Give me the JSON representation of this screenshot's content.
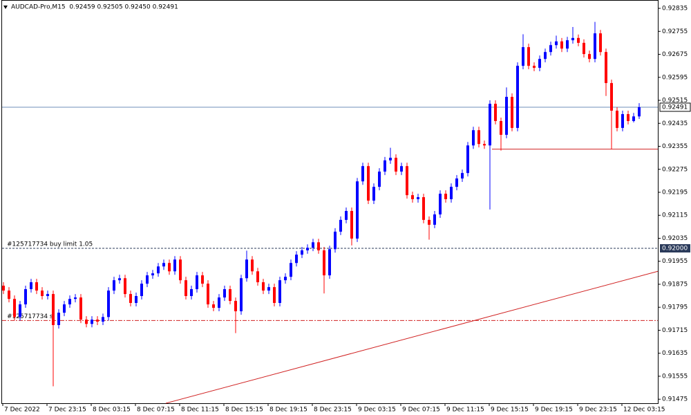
{
  "chart_data": {
    "type": "candlestick",
    "title": "AUDCAD-Pro,M15  0.92459 0.92505 0.92450 0.92491",
    "up_color": "#0000ff",
    "down_color": "#ff0000",
    "ylim": [
      0.91461,
      0.92864
    ],
    "yticks": [
      0.92835,
      0.92755,
      0.92675,
      0.92595,
      0.92515,
      0.92435,
      0.92355,
      0.92275,
      0.92195,
      0.92115,
      0.92035,
      0.91955,
      0.91875,
      0.91795,
      0.91715,
      0.91635,
      0.91555,
      0.91475
    ],
    "time_labels": [
      "7 Dec 2022",
      "7 Dec 23:15",
      "8 Dec 03:15",
      "8 Dec 07:15",
      "8 Dec 11:15",
      "8 Dec 15:15",
      "8 Dec 19:15",
      "8 Dec 23:15",
      "9 Dec 03:15",
      "9 Dec 07:15",
      "9 Dec 11:15",
      "9 Dec 15:15",
      "9 Dec 19:15",
      "9 Dec 23:15",
      "12 Dec 03:15"
    ],
    "bid_line": 0.92491,
    "order_line": {
      "text": "#125717734 buy limit 1.05",
      "price": {
        "value": 0.92,
        "label": "0.92000"
      }
    },
    "sl_line": {
      "text": "#125717734 sl",
      "price": 0.91749
    },
    "support_line": 0.92345,
    "trend_line": [
      0.91461,
      0.9192
    ],
    "ohlc": [
      [
        0.9187,
        0.91882,
        0.91841,
        0.91853
      ],
      [
        0.91853,
        0.91865,
        0.91812,
        0.91824
      ],
      [
        0.91824,
        0.91836,
        0.91749,
        0.91761
      ],
      [
        0.91761,
        0.91817,
        0.91749,
        0.91805
      ],
      [
        0.91805,
        0.9187,
        0.91793,
        0.91858
      ],
      [
        0.91858,
        0.91894,
        0.91846,
        0.91882
      ],
      [
        0.91882,
        0.91894,
        0.91841,
        0.91853
      ],
      [
        0.91853,
        0.91865,
        0.91822,
        0.91834
      ],
      [
        0.91834,
        0.91853,
        0.91822,
        0.91841
      ],
      [
        0.91841,
        0.91853,
        0.9152,
        0.91733
      ],
      [
        0.91733,
        0.91788,
        0.91721,
        0.91776
      ],
      [
        0.91776,
        0.91817,
        0.91764,
        0.91805
      ],
      [
        0.91805,
        0.91836,
        0.91793,
        0.91824
      ],
      [
        0.91824,
        0.91841,
        0.91812,
        0.91829
      ],
      [
        0.91829,
        0.91841,
        0.9174,
        0.91752
      ],
      [
        0.91752,
        0.91764,
        0.91725,
        0.91737
      ],
      [
        0.91737,
        0.91764,
        0.91725,
        0.91752
      ],
      [
        0.91752,
        0.91764,
        0.91733,
        0.91745
      ],
      [
        0.91745,
        0.91773,
        0.91733,
        0.91761
      ],
      [
        0.91761,
        0.91865,
        0.91749,
        0.91853
      ],
      [
        0.91853,
        0.91901,
        0.91841,
        0.91889
      ],
      [
        0.91889,
        0.91908,
        0.91877,
        0.91896
      ],
      [
        0.91896,
        0.91908,
        0.91829,
        0.91841
      ],
      [
        0.91841,
        0.91853,
        0.91798,
        0.9181
      ],
      [
        0.9181,
        0.91846,
        0.91798,
        0.91834
      ],
      [
        0.91834,
        0.91889,
        0.91822,
        0.91877
      ],
      [
        0.91877,
        0.91918,
        0.91865,
        0.91906
      ],
      [
        0.91906,
        0.91925,
        0.91894,
        0.91913
      ],
      [
        0.91913,
        0.91949,
        0.91901,
        0.91937
      ],
      [
        0.91937,
        0.91961,
        0.91925,
        0.91949
      ],
      [
        0.91949,
        0.91961,
        0.91908,
        0.9192
      ],
      [
        0.9192,
        0.91973,
        0.91908,
        0.91961
      ],
      [
        0.91961,
        0.91973,
        0.91877,
        0.91889
      ],
      [
        0.91889,
        0.91901,
        0.91822,
        0.91834
      ],
      [
        0.91834,
        0.9187,
        0.91822,
        0.91858
      ],
      [
        0.91858,
        0.91918,
        0.91846,
        0.91906
      ],
      [
        0.91906,
        0.91918,
        0.91865,
        0.91877
      ],
      [
        0.91877,
        0.91889,
        0.91793,
        0.91805
      ],
      [
        0.91805,
        0.91817,
        0.91781,
        0.91793
      ],
      [
        0.91793,
        0.91841,
        0.91781,
        0.91829
      ],
      [
        0.91829,
        0.9187,
        0.91817,
        0.91858
      ],
      [
        0.91858,
        0.9187,
        0.91805,
        0.91817
      ],
      [
        0.91817,
        0.91829,
        0.91705,
        0.91781
      ],
      [
        0.91781,
        0.91908,
        0.91769,
        0.91896
      ],
      [
        0.91896,
        0.91992,
        0.91884,
        0.91961
      ],
      [
        0.91961,
        0.91973,
        0.91908,
        0.9192
      ],
      [
        0.9192,
        0.91932,
        0.9187,
        0.91882
      ],
      [
        0.91882,
        0.91894,
        0.91841,
        0.91853
      ],
      [
        0.91853,
        0.91877,
        0.91841,
        0.91865
      ],
      [
        0.91865,
        0.91877,
        0.91798,
        0.9181
      ],
      [
        0.9181,
        0.91901,
        0.91798,
        0.91889
      ],
      [
        0.91889,
        0.91913,
        0.91877,
        0.91901
      ],
      [
        0.91901,
        0.91961,
        0.91889,
        0.91949
      ],
      [
        0.91949,
        0.9199,
        0.91937,
        0.91978
      ],
      [
        0.91978,
        0.92005,
        0.91966,
        0.91993
      ],
      [
        0.91993,
        0.92014,
        0.91981,
        0.92002
      ],
      [
        0.92002,
        0.92033,
        0.9199,
        0.92021
      ],
      [
        0.92021,
        0.92033,
        0.91981,
        0.91993
      ],
      [
        0.91993,
        0.92005,
        0.91843,
        0.91906
      ],
      [
        0.91906,
        0.92009,
        0.91894,
        0.91997
      ],
      [
        0.91997,
        0.9207,
        0.91985,
        0.92058
      ],
      [
        0.92058,
        0.92111,
        0.92046,
        0.92099
      ],
      [
        0.92099,
        0.92142,
        0.92087,
        0.9213
      ],
      [
        0.9213,
        0.92142,
        0.9201,
        0.92034
      ],
      [
        0.92034,
        0.92245,
        0.92022,
        0.92233
      ],
      [
        0.92233,
        0.92298,
        0.92221,
        0.92286
      ],
      [
        0.92286,
        0.92298,
        0.92154,
        0.92166
      ],
      [
        0.92166,
        0.92226,
        0.92154,
        0.92214
      ],
      [
        0.92214,
        0.92279,
        0.92202,
        0.92267
      ],
      [
        0.92267,
        0.92318,
        0.92255,
        0.92306
      ],
      [
        0.92306,
        0.9235,
        0.92294,
        0.92315
      ],
      [
        0.92315,
        0.92327,
        0.92255,
        0.92267
      ],
      [
        0.92267,
        0.92298,
        0.92255,
        0.92286
      ],
      [
        0.92286,
        0.92298,
        0.92173,
        0.92185
      ],
      [
        0.92185,
        0.92197,
        0.92159,
        0.92171
      ],
      [
        0.92171,
        0.9219,
        0.92159,
        0.92178
      ],
      [
        0.92178,
        0.9219,
        0.92087,
        0.92099
      ],
      [
        0.92099,
        0.92111,
        0.9203,
        0.92082
      ],
      [
        0.92082,
        0.9213,
        0.9207,
        0.92118
      ],
      [
        0.92118,
        0.92202,
        0.92106,
        0.9219
      ],
      [
        0.9219,
        0.92202,
        0.92159,
        0.92171
      ],
      [
        0.92171,
        0.92226,
        0.92159,
        0.92214
      ],
      [
        0.92214,
        0.92255,
        0.92202,
        0.92243
      ],
      [
        0.92243,
        0.92274,
        0.92231,
        0.92262
      ],
      [
        0.92262,
        0.9237,
        0.9225,
        0.92358
      ],
      [
        0.92358,
        0.92423,
        0.92346,
        0.92411
      ],
      [
        0.92411,
        0.92423,
        0.92351,
        0.92363
      ],
      [
        0.92363,
        0.92375,
        0.92346,
        0.92358
      ],
      [
        0.92358,
        0.92515,
        0.92135,
        0.92503
      ],
      [
        0.92503,
        0.92515,
        0.92431,
        0.92443
      ],
      [
        0.92443,
        0.92455,
        0.9234,
        0.92395
      ],
      [
        0.92395,
        0.9256,
        0.92383,
        0.92527
      ],
      [
        0.92527,
        0.92539,
        0.92407,
        0.92419
      ],
      [
        0.92419,
        0.92647,
        0.92407,
        0.92635
      ],
      [
        0.92635,
        0.92745,
        0.92623,
        0.927
      ],
      [
        0.927,
        0.92712,
        0.92623,
        0.92635
      ],
      [
        0.92635,
        0.92647,
        0.92616,
        0.92628
      ],
      [
        0.92628,
        0.92671,
        0.92616,
        0.92659
      ],
      [
        0.92659,
        0.92695,
        0.92647,
        0.92683
      ],
      [
        0.92683,
        0.92719,
        0.92671,
        0.92707
      ],
      [
        0.92707,
        0.9274,
        0.92695,
        0.9272
      ],
      [
        0.9272,
        0.92732,
        0.92683,
        0.92695
      ],
      [
        0.92695,
        0.92736,
        0.92683,
        0.92724
      ],
      [
        0.92724,
        0.9277,
        0.92712,
        0.92732
      ],
      [
        0.92732,
        0.92744,
        0.92703,
        0.92715
      ],
      [
        0.92715,
        0.92727,
        0.92664,
        0.92676
      ],
      [
        0.92676,
        0.92688,
        0.92647,
        0.92659
      ],
      [
        0.92659,
        0.92788,
        0.92647,
        0.92748
      ],
      [
        0.92748,
        0.9276,
        0.92671,
        0.92683
      ],
      [
        0.92683,
        0.92695,
        0.9253,
        0.92575
      ],
      [
        0.92575,
        0.92587,
        0.92345,
        0.92479
      ],
      [
        0.92479,
        0.92491,
        0.92407,
        0.92419
      ],
      [
        0.92419,
        0.92479,
        0.92407,
        0.92467
      ],
      [
        0.92467,
        0.92479,
        0.92431,
        0.92443
      ],
      [
        0.92443,
        0.92471,
        0.92438,
        0.92459
      ],
      [
        0.92459,
        0.92505,
        0.9245,
        0.92491
      ]
    ]
  }
}
